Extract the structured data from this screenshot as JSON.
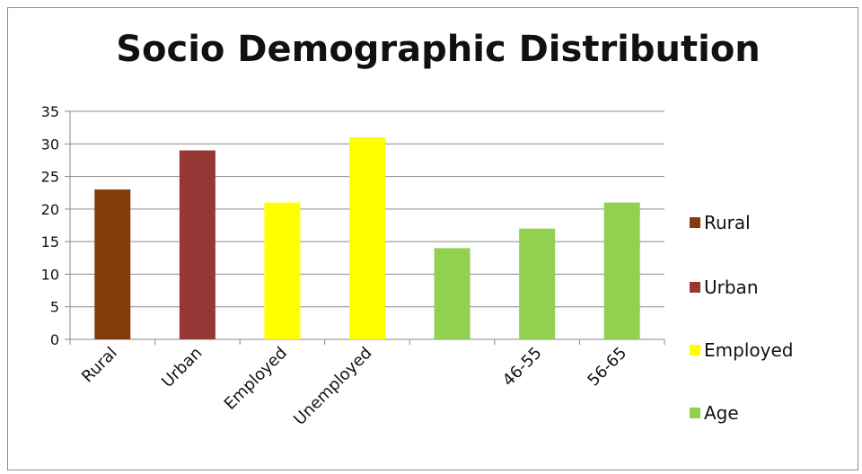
{
  "chart_data": {
    "type": "bar",
    "title": "Socio Demographic Distribution",
    "categories": [
      "Rural",
      "Urban",
      "Employed",
      "Unemployed",
      "",
      "46-55",
      "56-65"
    ],
    "values": [
      23,
      29,
      21,
      31,
      14,
      17,
      21
    ],
    "bar_colors": [
      "#843c0c",
      "#953735",
      "#ffff00",
      "#ffff00",
      "#92d050",
      "#92d050",
      "#92d050"
    ],
    "ylim": [
      0,
      35
    ],
    "yticks": [
      0,
      5,
      10,
      15,
      20,
      25,
      30,
      35
    ],
    "grid": true,
    "legend_position": "right",
    "legend": [
      {
        "label": "Rural",
        "color": "#843c0c"
      },
      {
        "label": "Urban",
        "color": "#953735"
      },
      {
        "label": "Employed",
        "color": "#ffff00"
      },
      {
        "label": "Age",
        "color": "#92d050"
      }
    ]
  }
}
